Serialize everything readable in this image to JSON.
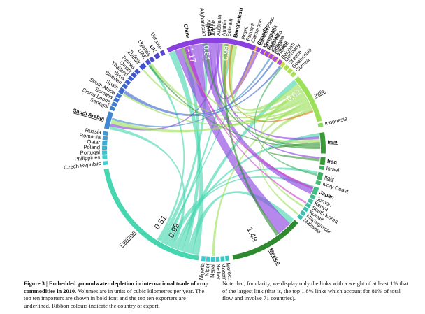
{
  "figure": {
    "colors": {
      "usa": "#8a3fe0",
      "china": "#cc44cc",
      "pakistan": "#46d6b0",
      "india": "#9ce05a",
      "mexico": "#2f8a2f",
      "iran": "#3a9a3a",
      "other_lime": "#a8e060",
      "other_teal": "#3fcfcf",
      "other_blue": "#4a6ad0",
      "orange": "#e07a20"
    },
    "countries": [
      {
        "name": "China",
        "bold": true,
        "underline": false,
        "start": 342,
        "end": 352,
        "color": "#cc44cc"
      },
      {
        "name": "Afghanistan",
        "bold": false,
        "underline": false,
        "start": 354,
        "end": 356,
        "color": "#7bb0e0"
      },
      {
        "name": "Algeria",
        "bold": false,
        "underline": false,
        "start": 356.5,
        "end": 358.5,
        "color": "#5a8ad0"
      },
      {
        "name": "Angola",
        "bold": false,
        "underline": false,
        "start": 359,
        "end": 361,
        "color": "#5a8ad0"
      },
      {
        "name": "Australia",
        "bold": false,
        "underline": false,
        "start": 361.5,
        "end": 363.5,
        "color": "#4a6ad0"
      },
      {
        "name": "Austria",
        "bold": false,
        "underline": false,
        "start": 364,
        "end": 366,
        "color": "#4a6ad0"
      },
      {
        "name": "Bahrain",
        "bold": false,
        "underline": false,
        "start": 366.5,
        "end": 368.5,
        "color": "#e07a20"
      },
      {
        "name": "Bangladesh",
        "bold": true,
        "underline": false,
        "start": 369,
        "end": 373,
        "color": "#e07a20"
      },
      {
        "name": "Brazil",
        "bold": false,
        "underline": false,
        "start": 374,
        "end": 376,
        "color": "#e07a20"
      },
      {
        "name": "Burundi",
        "bold": false,
        "underline": false,
        "start": 376.5,
        "end": 378.5,
        "color": "#f0a040"
      },
      {
        "name": "Cameroon",
        "bold": false,
        "underline": false,
        "start": 379,
        "end": 381,
        "color": "#f0a040"
      },
      {
        "name": "Canada",
        "bold": true,
        "underline": false,
        "start": 381.5,
        "end": 385,
        "color": "#f0b040"
      },
      {
        "name": "Sri Lanka",
        "bold": false,
        "underline": false,
        "start": 386,
        "end": 388,
        "color": "#f0c040"
      },
      {
        "name": "Colombia",
        "bold": false,
        "underline": false,
        "start": 388.5,
        "end": 390.5,
        "color": "#f0c040"
      },
      {
        "name": "Egypt",
        "bold": false,
        "underline": false,
        "start": 391,
        "end": 393,
        "color": "#e0d040"
      },
      {
        "name": "France",
        "bold": false,
        "underline": false,
        "start": 393.5,
        "end": 395.5,
        "color": "#d0e040"
      },
      {
        "name": "Germany",
        "bold": false,
        "underline": false,
        "start": 398,
        "end": 400,
        "color": "#c0e040"
      },
      {
        "name": "Greece",
        "bold": false,
        "underline": false,
        "start": 400.5,
        "end": 402.5,
        "color": "#b0e050"
      },
      {
        "name": "Guatemala",
        "bold": false,
        "underline": false,
        "start": 403,
        "end": 405,
        "color": "#b0e050"
      },
      {
        "name": "Guinea",
        "bold": false,
        "underline": false,
        "start": 405.5,
        "end": 407.5,
        "color": "#a8e060"
      },
      {
        "name": "India",
        "bold": false,
        "underline": true,
        "start": 409,
        "end": 435,
        "color": "#9ce05a"
      },
      {
        "name": "Indonesia",
        "bold": false,
        "underline": false,
        "start": 436,
        "end": 438,
        "color": "#8cd860"
      },
      {
        "name": "Iran",
        "bold": true,
        "underline": true,
        "start": 441,
        "end": 452,
        "color": "#3a9a3a"
      },
      {
        "name": "Iraq",
        "bold": true,
        "underline": false,
        "start": 454,
        "end": 458,
        "color": "#3a9a3a"
      },
      {
        "name": "Israel",
        "bold": false,
        "underline": false,
        "start": 458.5,
        "end": 460.5,
        "color": "#40b060"
      },
      {
        "name": "Italy",
        "bold": false,
        "underline": true,
        "start": 462,
        "end": 466,
        "color": "#40b060"
      },
      {
        "name": "Ivory Coast",
        "bold": false,
        "underline": false,
        "start": 466.5,
        "end": 468.5,
        "color": "#40c070"
      },
      {
        "name": "Japan",
        "bold": true,
        "underline": false,
        "start": 470,
        "end": 474,
        "color": "#40c080"
      },
      {
        "name": "Jordan",
        "bold": false,
        "underline": false,
        "start": 474.5,
        "end": 476.5,
        "color": "#40c090"
      },
      {
        "name": "Kenya",
        "bold": false,
        "underline": false,
        "start": 477,
        "end": 479,
        "color": "#40c0a0"
      },
      {
        "name": "South Korea",
        "bold": false,
        "underline": false,
        "start": 479.5,
        "end": 481.5,
        "color": "#40c0a0"
      },
      {
        "name": "Kuwait",
        "bold": false,
        "underline": false,
        "start": 482,
        "end": 484,
        "color": "#40c0b0"
      },
      {
        "name": "Madagascar",
        "bold": false,
        "underline": false,
        "start": 484.5,
        "end": 486.5,
        "color": "#40c0b0"
      },
      {
        "name": "Malaysia",
        "bold": false,
        "underline": false,
        "start": 487,
        "end": 489,
        "color": "#40c0b0"
      },
      {
        "name": "Mexico",
        "bold": true,
        "underline": true,
        "start": 491,
        "end": 530,
        "color": "#2f8a2f"
      },
      {
        "name": "Morocco",
        "bold": false,
        "underline": false,
        "start": 532,
        "end": 534,
        "color": "#40c8c0"
      },
      {
        "name": "Mozambique",
        "bold": false,
        "underline": false,
        "start": 534.5,
        "end": 536.5,
        "color": "#40c8c0"
      },
      {
        "name": "Netherlands",
        "bold": false,
        "underline": false,
        "start": 537,
        "end": 539,
        "color": "#40c8c8"
      },
      {
        "name": "Nepal",
        "bold": false,
        "underline": false,
        "start": 539.5,
        "end": 541.5,
        "color": "#40c8c8"
      },
      {
        "name": "Niger",
        "bold": false,
        "underline": false,
        "start": 542,
        "end": 544,
        "color": "#40c8d0"
      },
      {
        "name": "Nigeria",
        "bold": false,
        "underline": false,
        "start": 544.5,
        "end": 546.5,
        "color": "#40c8d0"
      },
      {
        "name": "Pakistan",
        "bold": false,
        "underline": true,
        "start": 548,
        "end": 620,
        "color": "#46d6b0"
      },
      {
        "name": "Czech Republic",
        "bold": false,
        "underline": false,
        "start": 622,
        "end": 624,
        "color": "#3fcfcf"
      },
      {
        "name": "Philippines",
        "bold": false,
        "underline": false,
        "start": 625,
        "end": 627,
        "color": "#3fcfcf"
      },
      {
        "name": "Portugal",
        "bold": false,
        "underline": false,
        "start": 627.5,
        "end": 629.5,
        "color": "#3fc0cf"
      },
      {
        "name": "Poland",
        "bold": false,
        "underline": false,
        "start": 630,
        "end": 632,
        "color": "#3fb0cf"
      },
      {
        "name": "Qatar",
        "bold": false,
        "underline": false,
        "start": 632.5,
        "end": 634.5,
        "color": "#3fa8cf"
      },
      {
        "name": "Romania",
        "bold": false,
        "underline": false,
        "start": 635,
        "end": 637,
        "color": "#3fa0cf"
      },
      {
        "name": "Russia",
        "bold": false,
        "underline": false,
        "start": 637.5,
        "end": 639.5,
        "color": "#3f98cf"
      },
      {
        "name": "Saudi Arabia",
        "bold": true,
        "underline": true,
        "start": 641,
        "end": 650,
        "color": "#3f88cf"
      },
      {
        "name": "Senegal",
        "bold": false,
        "underline": false,
        "start": 651,
        "end": 653,
        "color": "#3f80cf"
      },
      {
        "name": "Sierra Leone",
        "bold": false,
        "underline": false,
        "start": 653.5,
        "end": 655.5,
        "color": "#3f78cf"
      },
      {
        "name": "Somalia",
        "bold": false,
        "underline": false,
        "start": 656,
        "end": 658,
        "color": "#3f70cf"
      },
      {
        "name": "South Africa",
        "bold": false,
        "underline": false,
        "start": 658.5,
        "end": 660.5,
        "color": "#3f70cf"
      },
      {
        "name": "Spain",
        "bold": false,
        "underline": false,
        "start": 661,
        "end": 664,
        "color": "#3f68cf"
      },
      {
        "name": "Sweden",
        "bold": false,
        "underline": false,
        "start": 664.5,
        "end": 666.5,
        "color": "#3f68cf"
      },
      {
        "name": "Syria",
        "bold": false,
        "underline": false,
        "start": 667,
        "end": 669,
        "color": "#3f60cf"
      },
      {
        "name": "Thailand",
        "bold": false,
        "underline": false,
        "start": 669.5,
        "end": 671.5,
        "color": "#3f60cf"
      },
      {
        "name": "Oman",
        "bold": false,
        "underline": false,
        "start": 672,
        "end": 674,
        "color": "#3f58cf"
      },
      {
        "name": "Tunisia",
        "bold": false,
        "underline": false,
        "start": 674.5,
        "end": 676.5,
        "color": "#3f58cf"
      },
      {
        "name": "Turkey",
        "bold": false,
        "underline": true,
        "start": 678,
        "end": 681,
        "color": "#3f50cf"
      },
      {
        "name": "UAE",
        "bold": false,
        "underline": false,
        "start": 682,
        "end": 684,
        "color": "#4a50cf"
      },
      {
        "name": "Uganda",
        "bold": false,
        "underline": false,
        "start": 684.5,
        "end": 686.5,
        "color": "#4a50cf"
      },
      {
        "name": "UK",
        "bold": true,
        "underline": false,
        "start": 687.5,
        "end": 690,
        "color": "#5048cf"
      },
      {
        "name": "Ukraine",
        "bold": false,
        "underline": false,
        "start": 691,
        "end": 693,
        "color": "#5848cf"
      },
      {
        "name": "USA",
        "bold": true,
        "underline": true,
        "start": 695,
        "end": 742,
        "color": "#8a3fe0"
      },
      {
        "name": "Burkina Faso",
        "bold": false,
        "underline": false,
        "start": 743,
        "end": 745,
        "color": "#9a48e0"
      },
      {
        "name": "Venezuela",
        "bold": false,
        "underline": false,
        "start": 745.5,
        "end": 747.5,
        "color": "#9a48e0"
      },
      {
        "name": "Vietnam",
        "bold": false,
        "underline": false,
        "start": 748,
        "end": 750,
        "color": "#a048e0"
      },
      {
        "name": "Ethiopia",
        "bold": false,
        "underline": false,
        "start": 750.5,
        "end": 752.5,
        "color": "#a848d8"
      },
      {
        "name": "Yemen",
        "bold": false,
        "underline": false,
        "start": 753,
        "end": 755,
        "color": "#b048d8"
      },
      {
        "name": "Belgium",
        "bold": false,
        "underline": false,
        "start": 756,
        "end": 758,
        "color": "#b848d0"
      }
    ],
    "links": [
      {
        "from": "Pakistan",
        "to": "USA",
        "value": 0,
        "width": 8,
        "color": "#46d6b0"
      },
      {
        "from": "Pakistan",
        "to": "Mexico",
        "value": 0,
        "width": 7,
        "color": "#46d6b0"
      },
      {
        "from": "Pakistan",
        "to": "China",
        "value": 0,
        "width": 6,
        "color": "#46d6b0"
      },
      {
        "from": "Pakistan",
        "to": "India",
        "value": 0,
        "width": 6,
        "color": "#46d6b0"
      },
      {
        "from": "Pakistan",
        "to": "Iran",
        "value": 0,
        "width": 4,
        "color": "#46d6b0"
      },
      {
        "from": "Pakistan",
        "to": "Saudi Arabia",
        "value": 0,
        "width": 4,
        "color": "#46d6b0"
      },
      {
        "from": "Pakistan",
        "to": "Japan",
        "value": 0,
        "width": 3,
        "color": "#46d6b0"
      },
      {
        "from": "Pakistan",
        "to": "Italy",
        "value": 0,
        "width": 3,
        "color": "#46d6b0"
      },
      {
        "from": "Pakistan",
        "to": "Bangladesh",
        "value": 0,
        "width": 3,
        "color": "#46d6b0"
      },
      {
        "from": "Pakistan",
        "to": "Canada",
        "value": 0,
        "width": 2,
        "color": "#46d6b0"
      },
      {
        "from": "Pakistan",
        "to": "Afghanistan",
        "value": 0,
        "width": 5,
        "color": "#46d6b0"
      },
      {
        "from": "Pakistan",
        "to": "UAE",
        "value": 0,
        "width": 3,
        "color": "#46d6b0"
      },
      {
        "from": "USA",
        "to": "Mexico",
        "value": 1.48,
        "width": 18,
        "color": "#8a3fe0"
      },
      {
        "from": "USA",
        "to": "China",
        "value": 1.17,
        "width": 14,
        "color": "#8a3fe0"
      },
      {
        "from": "USA",
        "to": "Japan",
        "value": 0.99,
        "width": 11,
        "color": "#8a3fe0"
      },
      {
        "from": "USA",
        "to": "Canada",
        "value": 0.64,
        "width": 7,
        "color": "#8a3fe0"
      },
      {
        "from": "USA",
        "to": "Iran",
        "value": 0,
        "width": 3,
        "color": "#8a3fe0"
      },
      {
        "from": "USA",
        "to": "Saudi Arabia",
        "value": 0,
        "width": 3,
        "color": "#8a3fe0"
      },
      {
        "from": "USA",
        "to": "Iraq",
        "value": 0,
        "width": 2,
        "color": "#8a3fe0"
      },
      {
        "from": "India",
        "to": "Bangladesh",
        "value": 0.62,
        "width": 7,
        "color": "#9ce05a"
      },
      {
        "from": "India",
        "to": "Iran",
        "value": 0,
        "width": 4,
        "color": "#9ce05a"
      },
      {
        "from": "India",
        "to": "China",
        "value": 0,
        "width": 4,
        "color": "#9ce05a"
      },
      {
        "from": "India",
        "to": "Saudi Arabia",
        "value": 0,
        "width": 5,
        "color": "#9ce05a"
      },
      {
        "from": "India",
        "to": "UAE",
        "value": 0,
        "width": 3,
        "color": "#9ce05a"
      },
      {
        "from": "India",
        "to": "Nepal",
        "value": 0,
        "width": 3,
        "color": "#9ce05a"
      },
      {
        "from": "India",
        "to": "USA",
        "value": 0,
        "width": 3,
        "color": "#9ce05a"
      },
      {
        "from": "India",
        "to": "Spain",
        "value": 0,
        "width": 2,
        "color": "#9ce05a"
      },
      {
        "from": "India",
        "to": "Turkey",
        "value": 0,
        "width": 2,
        "color": "#9ce05a"
      },
      {
        "from": "India",
        "to": "Kuwait",
        "value": 0,
        "width": 2,
        "color": "#9ce05a"
      },
      {
        "from": "India",
        "to": "Malaysia",
        "value": 0,
        "width": 2,
        "color": "#9ce05a"
      },
      {
        "from": "Mexico",
        "to": "USA",
        "value": 0,
        "width": 4,
        "color": "#2f8a2f"
      },
      {
        "from": "Iran",
        "to": "Iraq",
        "value": 0,
        "width": 3,
        "color": "#3a9a3a"
      },
      {
        "from": "Iran",
        "to": "Afghanistan",
        "value": 0,
        "width": 3,
        "color": "#3a9a3a"
      },
      {
        "from": "Iran",
        "to": "UAE",
        "value": 0,
        "width": 2,
        "color": "#3a9a3a"
      },
      {
        "from": "China",
        "to": "Japan",
        "value": 0,
        "width": 3,
        "color": "#cc44cc"
      },
      {
        "from": "China",
        "to": "South Korea",
        "value": 0,
        "width": 2,
        "color": "#cc44cc"
      },
      {
        "from": "Saudi Arabia",
        "to": "Egypt",
        "value": 0,
        "width": 2,
        "color": "#3f88cf"
      },
      {
        "from": "Spain",
        "to": "Germany",
        "value": 0,
        "width": 2,
        "color": "#3f68cf"
      },
      {
        "from": "Spain",
        "to": "France",
        "value": 0,
        "width": 2,
        "color": "#3f68cf"
      },
      {
        "from": "Italy",
        "to": "Germany",
        "value": 0,
        "width": 2,
        "color": "#40b060"
      },
      {
        "from": "Bangladesh",
        "to": "India",
        "value": 0,
        "width": 2,
        "color": "#e07a20"
      },
      {
        "from": "Canada",
        "to": "USA",
        "value": 0,
        "width": 2,
        "color": "#f0b040"
      }
    ],
    "value_labels": [
      {
        "text": "0.64",
        "near": "USA",
        "offset": 1.5
      },
      {
        "text": "0.99",
        "near": "USA",
        "offset": 3.5
      },
      {
        "text": "1.17",
        "near": "USA",
        "offset": 0
      },
      {
        "text": "0.62",
        "near": "India",
        "offset": 0
      },
      {
        "text": "1.48",
        "near": "Mexico",
        "offset": 0
      },
      {
        "text": "0.99",
        "near": "Pakistan",
        "offset": 0
      },
      {
        "text": "0.51",
        "near": "Pakistan",
        "offset": 1
      }
    ]
  },
  "caption": {
    "title": "Figure 3 | Embedded groundwater depletion in international trade of crop commodities in 2010.",
    "body_left": "Volumes are in units of cubic kilometres per year. The top ten importers are shown in bold font and the top ten exporters are underlined. Ribbon colours indicate the country of export.",
    "body_right": "Note that, for clarity, we display only the links with a weight of at least 1% that of the largest link (that is, the top 1.8% links which account for 81% of total flow and involve 71 countries)."
  }
}
